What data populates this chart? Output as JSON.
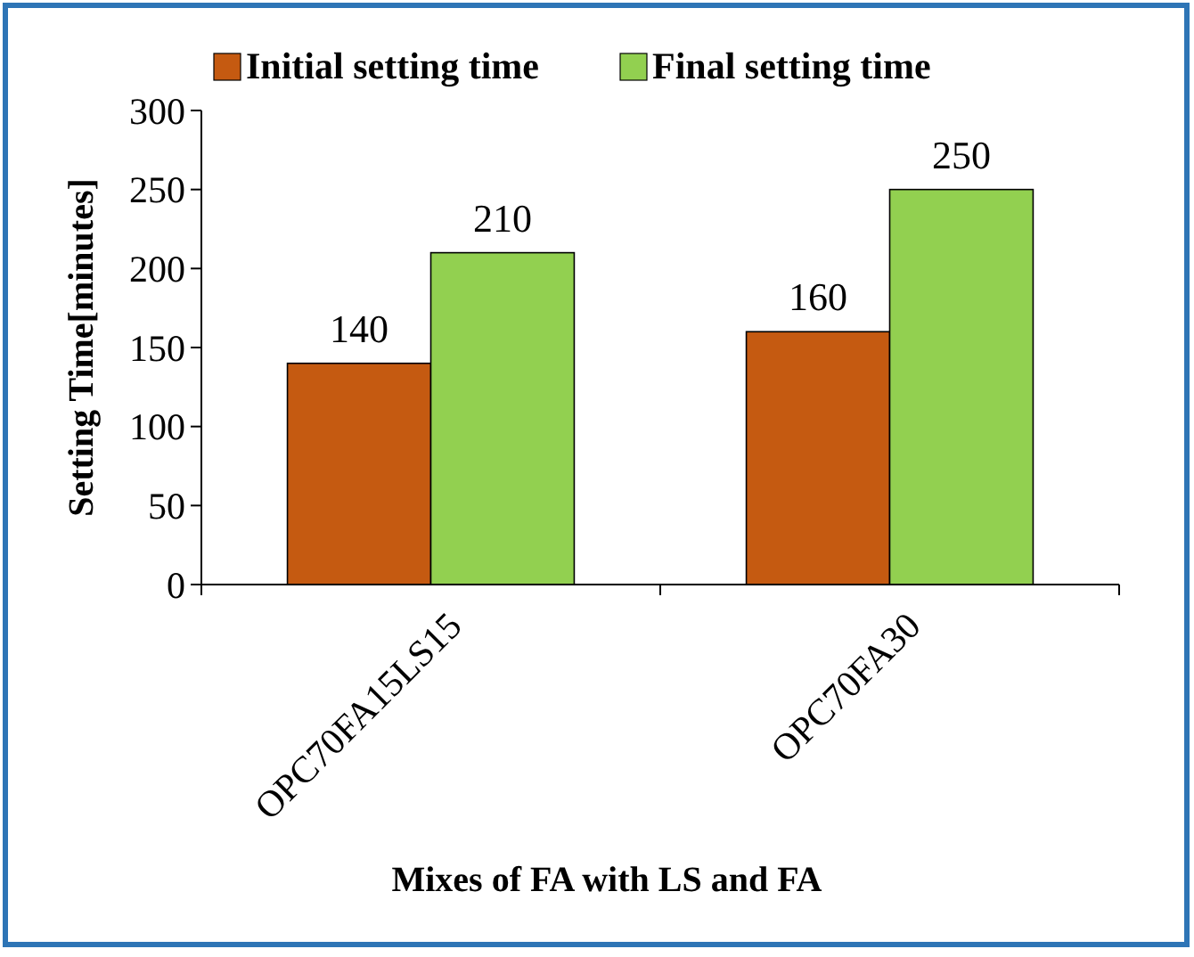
{
  "chart_data": {
    "type": "bar",
    "xlabel": "Mixes of FA with LS and FA",
    "ylabel": "Setting Time[minutes]",
    "categories": [
      "OPC70FA15LS15",
      "OPC70FA30"
    ],
    "series": [
      {
        "name": "Initial setting time",
        "color": "#c55a11",
        "values": [
          140,
          160
        ]
      },
      {
        "name": "Final setting time",
        "color": "#92d050",
        "values": [
          210,
          250
        ]
      }
    ],
    "ylim": [
      0,
      300
    ],
    "yticks": [
      0,
      50,
      100,
      150,
      200,
      250,
      300
    ],
    "data_labels": true,
    "legend": "top",
    "grid": false
  }
}
